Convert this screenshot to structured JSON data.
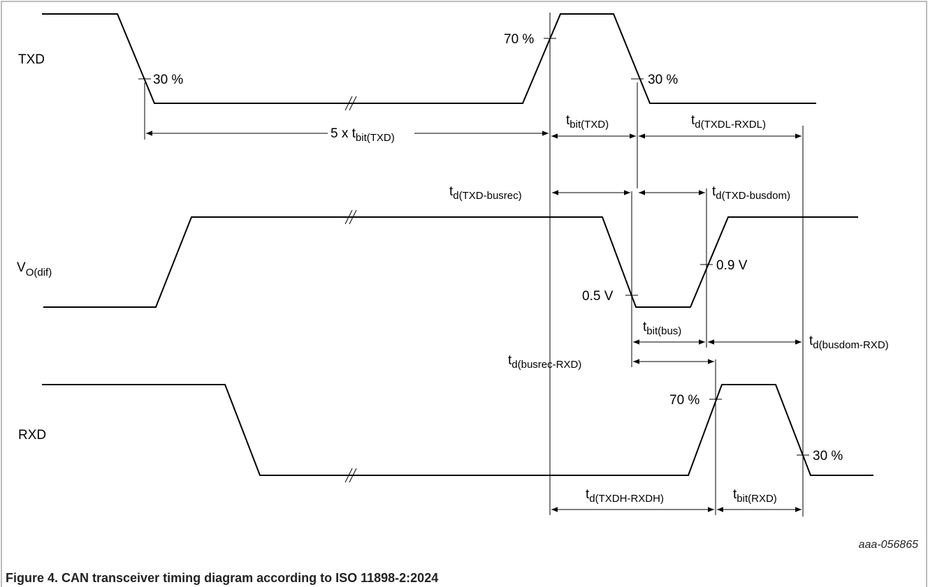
{
  "signals": {
    "txd": "TXD",
    "vodif": {
      "main": "V",
      "sub": "O(dif)"
    },
    "rxd": "RXD"
  },
  "thresholds": {
    "txd_rise": "70 %",
    "txd_fall_1": "30 %",
    "txd_fall_2": "30 %",
    "bus_rec": "0.5 V",
    "bus_dom": "0.9 V",
    "rxd_rise": "70 %",
    "rxd_fall": "30 %"
  },
  "timings": {
    "five_tbit_txd": {
      "pre": "5 x t",
      "sub": "bit(TXD)"
    },
    "tbit_txd": {
      "main": "t",
      "sub": "bit(TXD)"
    },
    "td_txdl_rxdl": {
      "main": "t",
      "sub": "d(TXDL-RXDL)"
    },
    "td_txd_busrec": {
      "main": "t",
      "sub": "d(TXD-busrec)"
    },
    "td_txd_busdom": {
      "main": "t",
      "sub": "d(TXD-busdom)"
    },
    "tbit_bus": {
      "main": "t",
      "sub": "bit(bus)"
    },
    "td_busdom_rxd": {
      "main": "t",
      "sub": "d(busdom-RXD)"
    },
    "td_busrec_rxd": {
      "main": "t",
      "sub": "d(busrec-RXD)"
    },
    "td_txdh_rxdh": {
      "main": "t",
      "sub": "d(TXDH-RXDH)"
    },
    "tbit_rxd": {
      "main": "t",
      "sub": "bit(RXD)"
    }
  },
  "figure_code": "aaa-056865",
  "caption": "Figure 4.  CAN transceiver timing diagram according to ISO 11898-2:2024"
}
